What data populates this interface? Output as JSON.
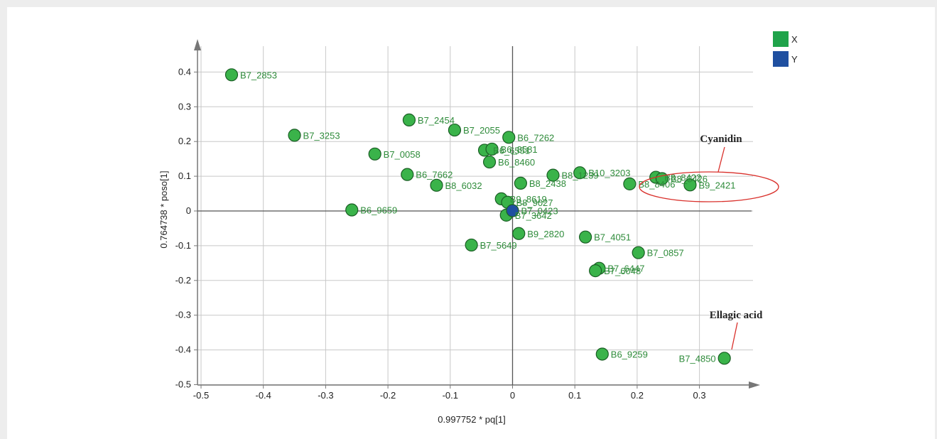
{
  "chart_data": {
    "type": "scatter",
    "title": "",
    "xlabel": "0.997752 * pq[1]",
    "ylabel": "0.764738 * poso[1]",
    "xlim": [
      -0.5,
      0.37
    ],
    "ylim": [
      -0.5,
      0.48
    ],
    "x_ticks": [
      "-0.5",
      "-0.4",
      "-0.3",
      "-0.2",
      "-0.1",
      "0",
      "0.1",
      "0.2",
      "0.3"
    ],
    "y_ticks": [
      "0.4",
      "0.3",
      "0.2",
      "0.1",
      "0",
      "-0.1",
      "-0.2",
      "-0.3",
      "-0.4",
      "-0.5"
    ],
    "x_tick_values": [
      -0.5,
      -0.4,
      -0.3,
      -0.2,
      -0.1,
      0,
      0.1,
      0.2,
      0.3
    ],
    "y_tick_values": [
      0.4,
      0.3,
      0.2,
      0.1,
      0,
      -0.1,
      -0.2,
      -0.3,
      -0.4,
      -0.5
    ],
    "grid": true,
    "legend_position": "top-right",
    "legend": [
      {
        "name": "X",
        "color": "#1fa34a"
      },
      {
        "name": "Y",
        "color": "#1f4fa0"
      }
    ],
    "series": [
      {
        "name": "X",
        "color": "#3ab34a",
        "points": [
          {
            "label": "B7_2853",
            "x": -0.451,
            "y": 0.392
          },
          {
            "label": "B7_3253",
            "x": -0.35,
            "y": 0.218
          },
          {
            "label": "B7_2454",
            "x": -0.166,
            "y": 0.262
          },
          {
            "label": "B7_2055",
            "x": -0.093,
            "y": 0.233
          },
          {
            "label": "B6_7262",
            "x": -0.006,
            "y": 0.212
          },
          {
            "label": "B7_0058",
            "x": -0.221,
            "y": 0.164
          },
          {
            "label": "B6_6551",
            "x": -0.045,
            "y": 0.175
          },
          {
            "label": "B6_8581",
            "x": -0.033,
            "y": 0.178
          },
          {
            "label": "B6_8460",
            "x": -0.037,
            "y": 0.141
          },
          {
            "label": "B6_7662",
            "x": -0.169,
            "y": 0.105
          },
          {
            "label": "B8_6032",
            "x": -0.122,
            "y": 0.074
          },
          {
            "label": "B8_2438",
            "x": 0.013,
            "y": 0.08
          },
          {
            "label": "B8_1239",
            "x": 0.065,
            "y": 0.103
          },
          {
            "label": "B10_3203",
            "x": 0.108,
            "y": 0.11
          },
          {
            "label": "B8_8406",
            "x": 0.188,
            "y": 0.078
          },
          {
            "label": "B8_8422",
            "x": 0.23,
            "y": 0.097
          },
          {
            "label": "B8_8426",
            "x": 0.24,
            "y": 0.093
          },
          {
            "label": "B9_2421",
            "x": 0.285,
            "y": 0.075
          },
          {
            "label": "B9_8619",
            "x": -0.018,
            "y": 0.035
          },
          {
            "label": "B8_9027",
            "x": -0.008,
            "y": 0.025
          },
          {
            "label": "B6_9659",
            "x": -0.258,
            "y": 0.003
          },
          {
            "label": "B7_3642",
            "x": -0.01,
            "y": -0.012
          },
          {
            "label": "B9_2820",
            "x": 0.01,
            "y": -0.065
          },
          {
            "label": "B7_5649",
            "x": -0.066,
            "y": -0.098
          },
          {
            "label": "B7_4051",
            "x": 0.117,
            "y": -0.075
          },
          {
            "label": "B7_0857",
            "x": 0.202,
            "y": -0.12
          },
          {
            "label": "B7_6447",
            "x": 0.139,
            "y": -0.165
          },
          {
            "label": "B7_6048",
            "x": 0.133,
            "y": -0.172
          },
          {
            "label": "B6_9259",
            "x": 0.144,
            "y": -0.412
          },
          {
            "label": "B7_4850",
            "x": 0.34,
            "y": -0.424
          }
        ]
      },
      {
        "name": "Y",
        "color": "#1f4fa0",
        "points": [
          {
            "label": "B7_0423",
            "x": 0.0,
            "y": 0.001
          }
        ]
      }
    ],
    "annotations": [
      {
        "text": "Cyanidin",
        "target_x": 0.255,
        "target_y": 0.09
      },
      {
        "text": "Ellagic acid",
        "target_x": 0.34,
        "target_y": -0.424
      }
    ]
  }
}
